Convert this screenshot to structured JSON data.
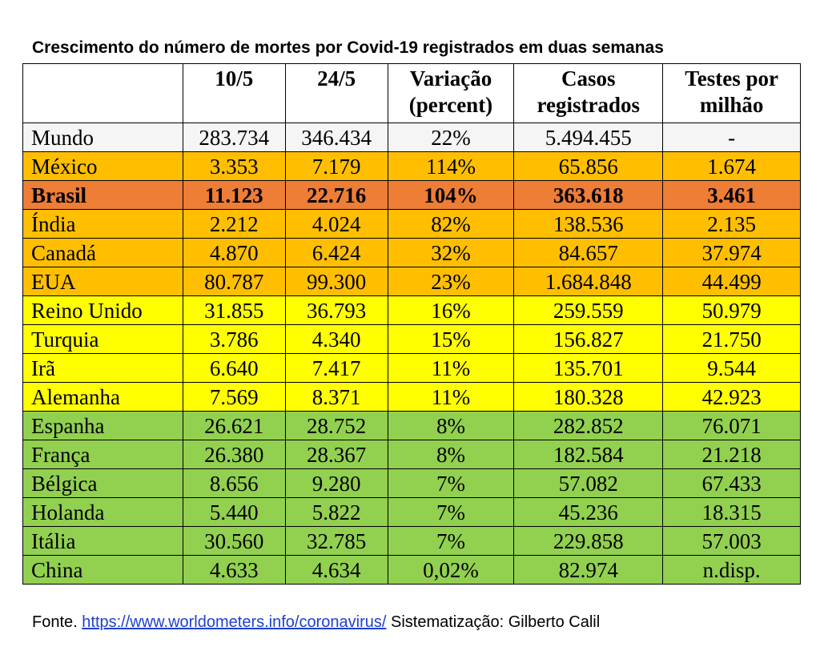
{
  "title": "Crescimento do número de mortes por Covid-19 registrados em duas semanas",
  "colors": {
    "white": "#f5f5f5",
    "orange": "#ffbf00",
    "dark_orange": "#ee7d36",
    "yellow": "#ffff00",
    "green": "#92d050"
  },
  "table": {
    "headers": [
      "",
      "10/5",
      "24/5",
      "Variação\n(percent)",
      "Casos\nregistrados",
      "Testes por\nmilhão"
    ],
    "rows": [
      {
        "cells": [
          "Mundo",
          "283.734",
          "346.434",
          "22%",
          "5.494.455",
          "-"
        ],
        "color": "white",
        "bold": false
      },
      {
        "cells": [
          "México",
          "3.353",
          "7.179",
          "114%",
          "65.856",
          "1.674"
        ],
        "color": "orange",
        "bold": false
      },
      {
        "cells": [
          "Brasil",
          "11.123",
          "22.716",
          "104%",
          "363.618",
          "3.461"
        ],
        "color": "dark_orange",
        "bold": true
      },
      {
        "cells": [
          "Índia",
          "2.212",
          "4.024",
          "82%",
          "138.536",
          "2.135"
        ],
        "color": "orange",
        "bold": false
      },
      {
        "cells": [
          "Canadá",
          "4.870",
          "6.424",
          "32%",
          "84.657",
          "37.974"
        ],
        "color": "orange",
        "bold": false
      },
      {
        "cells": [
          "EUA",
          "80.787",
          "99.300",
          "23%",
          "1.684.848",
          "44.499"
        ],
        "color": "orange",
        "bold": false
      },
      {
        "cells": [
          "Reino Unido",
          "31.855",
          "36.793",
          "16%",
          "259.559",
          "50.979"
        ],
        "color": "yellow",
        "bold": false
      },
      {
        "cells": [
          "Turquia",
          "3.786",
          "4.340",
          "15%",
          "156.827",
          "21.750"
        ],
        "color": "yellow",
        "bold": false
      },
      {
        "cells": [
          "Irã",
          "6.640",
          "7.417",
          "11%",
          "135.701",
          "9.544"
        ],
        "color": "yellow",
        "bold": false
      },
      {
        "cells": [
          "Alemanha",
          "7.569",
          "8.371",
          "11%",
          "180.328",
          "42.923"
        ],
        "color": "yellow",
        "bold": false
      },
      {
        "cells": [
          "Espanha",
          "26.621",
          "28.752",
          "8%",
          "282.852",
          "76.071"
        ],
        "color": "green",
        "bold": false
      },
      {
        "cells": [
          "França",
          "26.380",
          "28.367",
          "8%",
          "182.584",
          "21.218"
        ],
        "color": "green",
        "bold": false
      },
      {
        "cells": [
          "Bélgica",
          "8.656",
          "9.280",
          "7%",
          "57.082",
          "67.433"
        ],
        "color": "green",
        "bold": false
      },
      {
        "cells": [
          "Holanda",
          "5.440",
          "5.822",
          "7%",
          "45.236",
          "18.315"
        ],
        "color": "green",
        "bold": false
      },
      {
        "cells": [
          "Itália",
          "30.560",
          "32.785",
          "7%",
          "229.858",
          "57.003"
        ],
        "color": "green",
        "bold": false
      },
      {
        "cells": [
          "China",
          "4.633",
          "4.634",
          "0,02%",
          "82.974",
          "n.disp."
        ],
        "color": "green",
        "bold": false
      }
    ]
  },
  "source": {
    "prefix": "Fonte. ",
    "link_text": "https://www.worldometers.info/coronavirus/",
    "suffix": " Sistematização: Gilberto Calil"
  }
}
